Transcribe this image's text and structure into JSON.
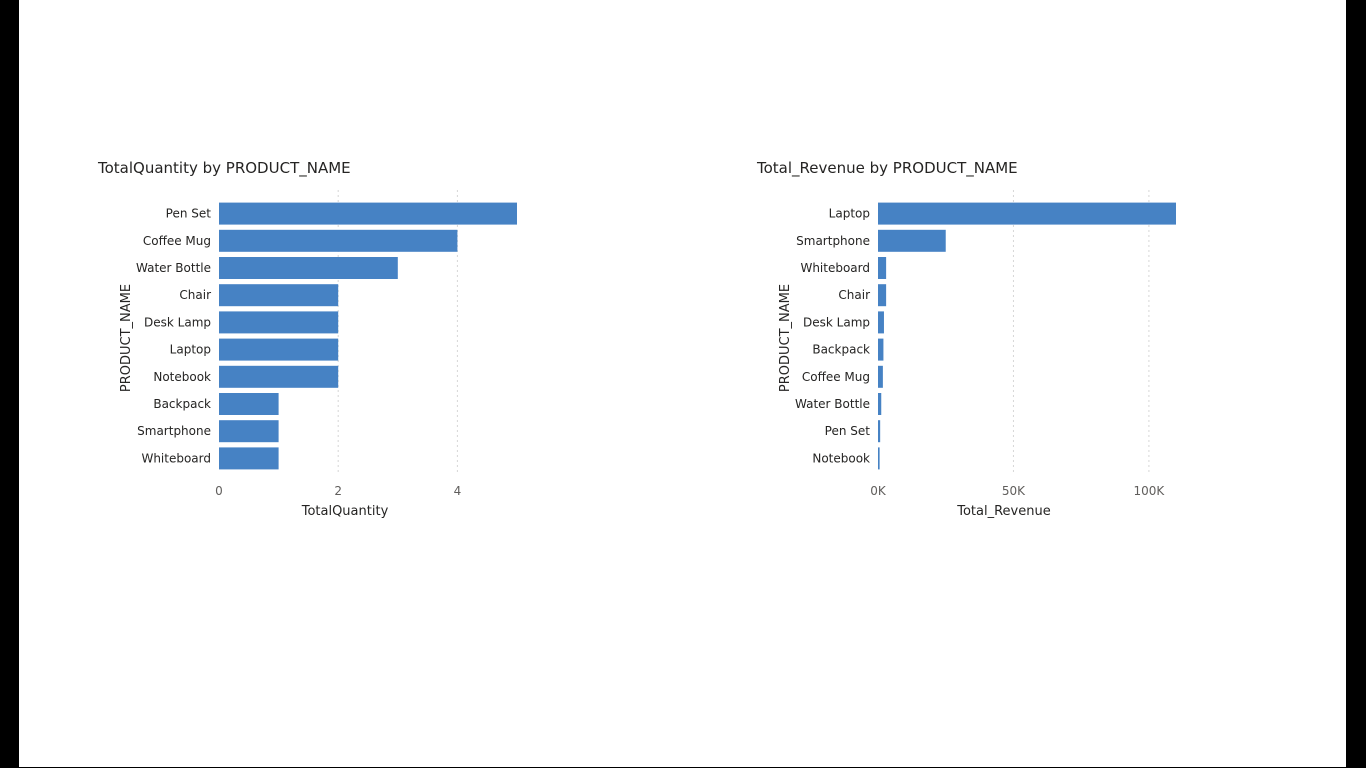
{
  "chart_data": [
    {
      "type": "bar",
      "orientation": "horizontal",
      "title": "TotalQuantity by PRODUCT_NAME",
      "xlabel": "TotalQuantity",
      "ylabel": "PRODUCT_NAME",
      "categories": [
        "Pen Set",
        "Coffee Mug",
        "Water Bottle",
        "Chair",
        "Desk Lamp",
        "Laptop",
        "Notebook",
        "Backpack",
        "Smartphone",
        "Whiteboard"
      ],
      "values": [
        5,
        4,
        3,
        2,
        2,
        2,
        2,
        1,
        1,
        1
      ],
      "xlim": [
        0,
        5
      ],
      "ticks": [
        0,
        2,
        4
      ],
      "tick_labels": [
        "0",
        "2",
        "4"
      ],
      "grid": true,
      "bar_color": "#4682C4"
    },
    {
      "type": "bar",
      "orientation": "horizontal",
      "title": "Total_Revenue by PRODUCT_NAME",
      "xlabel": "Total_Revenue",
      "ylabel": "PRODUCT_NAME",
      "categories": [
        "Laptop",
        "Smartphone",
        "Whiteboard",
        "Chair",
        "Desk Lamp",
        "Backpack",
        "Coffee Mug",
        "Water Bottle",
        "Pen Set",
        "Notebook"
      ],
      "values": [
        110000,
        25000,
        3000,
        3000,
        2200,
        2000,
        1800,
        1200,
        800,
        600
      ],
      "xlim": [
        0,
        110000
      ],
      "ticks": [
        0,
        50000,
        100000
      ],
      "tick_labels": [
        "0K",
        "50K",
        "100K"
      ],
      "grid": true,
      "bar_color": "#4682C4"
    }
  ]
}
